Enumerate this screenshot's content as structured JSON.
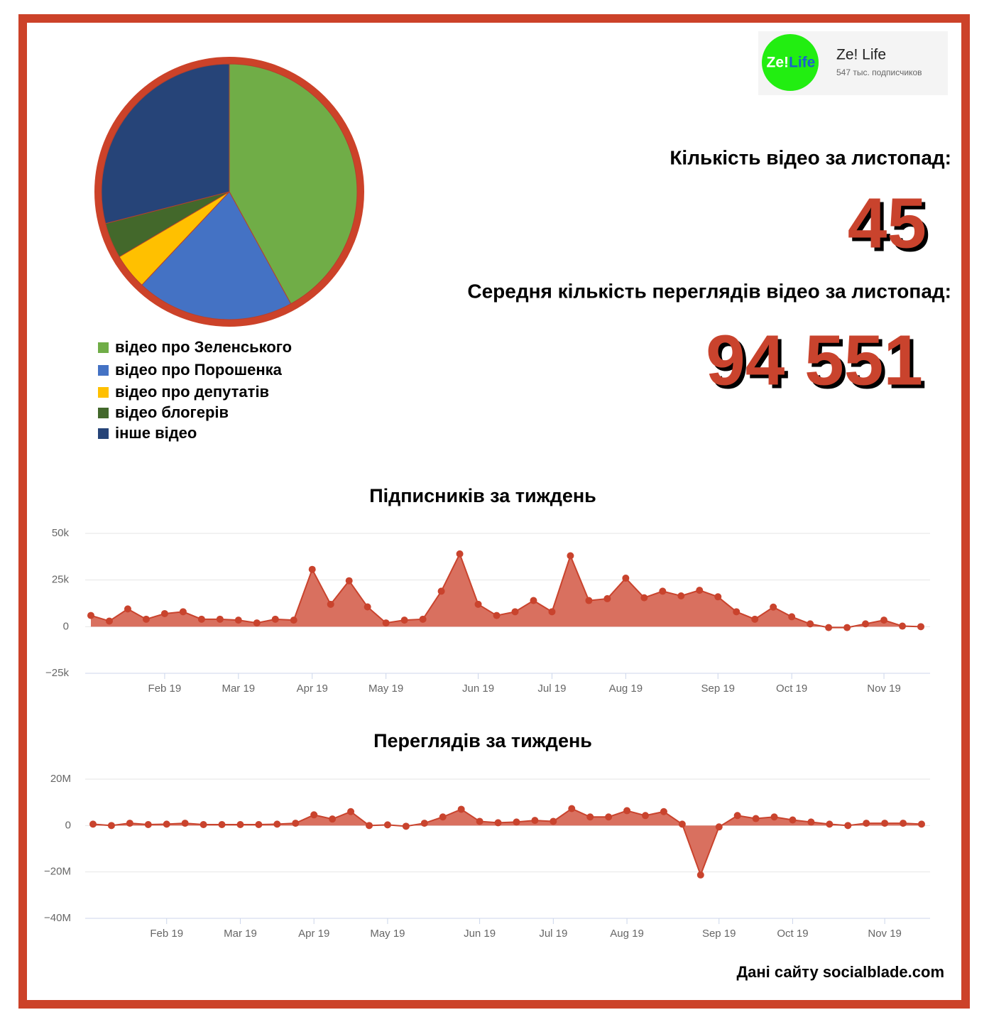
{
  "channel": {
    "logo": [
      "Ze!",
      "Life"
    ],
    "name": "Ze! Life",
    "subscribers": "547 тыс. подписчиков"
  },
  "stats": [
    {
      "label": "Кількість відео за листопад:",
      "value": 45
    },
    {
      "label": "Середня кількість переглядів відео за листопад:",
      "value": "94 551"
    }
  ],
  "source": "Дані сайту socialblade.com",
  "chart_data": [
    {
      "type": "pie",
      "categories": [
        "відео про Зеленського",
        "відео про Порошенка",
        "відео про депутатів",
        "відео блогерів",
        "інше відео"
      ],
      "values": [
        42,
        20,
        4.5,
        4.5,
        29
      ],
      "colors": [
        "#70ad47",
        "#4472c4",
        "#ffc000",
        "#43682b",
        "#264478"
      ]
    },
    {
      "type": "area",
      "title": "Підписників за тиждень",
      "color": "#c9432d",
      "fill": "#d9705f",
      "categories": [
        null,
        null,
        null,
        null,
        "Feb 19",
        null,
        null,
        null,
        "Mar 19",
        null,
        null,
        null,
        "Apr 19",
        null,
        null,
        null,
        "May 19",
        null,
        null,
        null,
        null,
        "Jun 19",
        null,
        null,
        null,
        "Jul 19",
        null,
        null,
        null,
        "Aug 19",
        null,
        null,
        null,
        null,
        "Sep 19",
        null,
        null,
        null,
        "Oct 19",
        null,
        null,
        null,
        null,
        "Nov 19",
        null,
        null
      ],
      "values": [
        6000,
        3000,
        9500,
        4000,
        7000,
        8000,
        4000,
        4000,
        3500,
        2000,
        4000,
        3500,
        30700,
        12000,
        24600,
        10600,
        2000,
        3500,
        4000,
        19000,
        39000,
        12000,
        6000,
        8000,
        14000,
        8000,
        38000,
        14000,
        15000,
        26000,
        15500,
        19000,
        16500,
        19500,
        16000,
        8000,
        4000,
        10500,
        5300,
        1500,
        -500,
        -500,
        1500,
        3500,
        300,
        0
      ],
      "ylim": [
        -25000,
        50000
      ],
      "yticks": [
        {
          "value": 50000,
          "label": "50k"
        },
        {
          "value": 25000,
          "label": "25k"
        },
        0,
        {
          "value": -25000,
          "label": "−25k"
        }
      ],
      "grid": true
    },
    {
      "type": "area",
      "title": "Переглядів за тиждень",
      "color": "#c9432d",
      "fill": "#d9705f",
      "categories": [
        null,
        null,
        null,
        null,
        "Feb 19",
        null,
        null,
        null,
        "Mar 19",
        null,
        null,
        null,
        "Apr 19",
        null,
        null,
        null,
        "May 19",
        null,
        null,
        null,
        null,
        "Jun 19",
        null,
        null,
        null,
        "Jul 19",
        null,
        null,
        null,
        "Aug 19",
        null,
        null,
        null,
        null,
        "Sep 19",
        null,
        null,
        null,
        "Oct 19",
        null,
        null,
        null,
        null,
        "Nov 19",
        null,
        null
      ],
      "values": [
        600000,
        0,
        1000000,
        400000,
        600000,
        1000000,
        400000,
        400000,
        400000,
        400000,
        600000,
        1000000,
        4600000,
        2800000,
        6000000,
        0,
        300000,
        -300000,
        1000000,
        3700000,
        7000000,
        1800000,
        1200000,
        1500000,
        2200000,
        1800000,
        7300000,
        3700000,
        3700000,
        6400000,
        4300000,
        6000000,
        600000,
        -21300000,
        -600000,
        4300000,
        3000000,
        3700000,
        2400000,
        1500000,
        600000,
        0,
        1000000,
        1000000,
        1000000,
        600000
      ],
      "ylim": [
        -40000000,
        20000000
      ],
      "yticks": [
        {
          "value": 20000000,
          "label": "20M"
        },
        0,
        {
          "value": -20000000,
          "label": "−20M"
        },
        {
          "value": -40000000,
          "label": "−40M"
        }
      ],
      "grid": true
    }
  ]
}
